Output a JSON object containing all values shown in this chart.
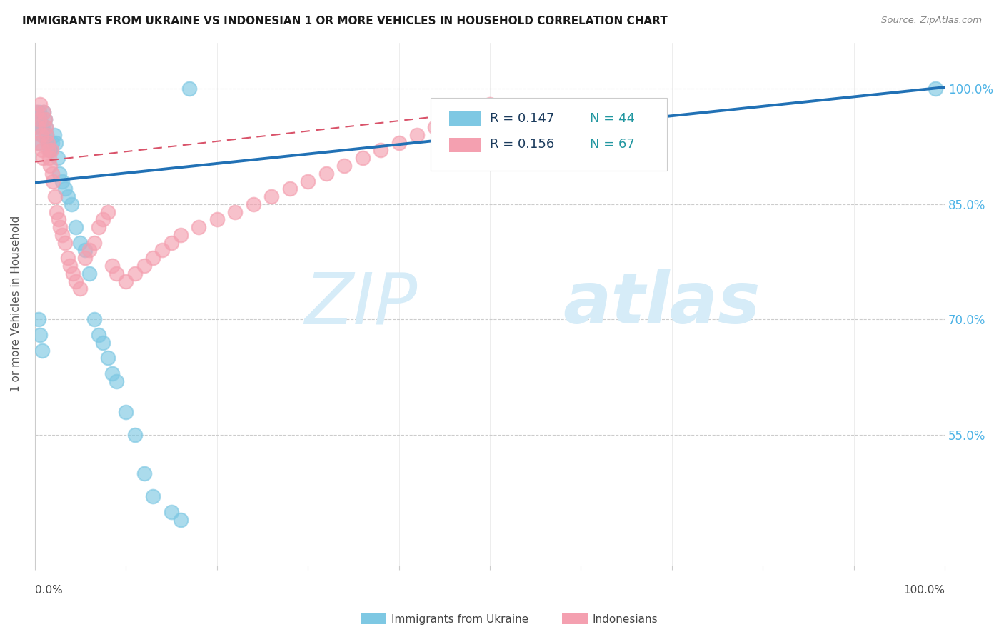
{
  "title": "IMMIGRANTS FROM UKRAINE VS INDONESIAN 1 OR MORE VEHICLES IN HOUSEHOLD CORRELATION CHART",
  "source": "Source: ZipAtlas.com",
  "ylabel": "1 or more Vehicles in Household",
  "ytick_labels": [
    "100.0%",
    "85.0%",
    "70.0%",
    "55.0%"
  ],
  "ytick_values": [
    1.0,
    0.85,
    0.7,
    0.55
  ],
  "ukraine_color": "#7ec8e3",
  "indonesian_color": "#f4a0b0",
  "ukraine_line_color": "#2171b5",
  "indonesian_line_color": "#d9536a",
  "background_color": "#ffffff",
  "watermark_zip": "ZIP",
  "watermark_atlas": "atlas",
  "watermark_color": "#d6ecf8",
  "legend_r_ukraine": "R = 0.147",
  "legend_n_ukraine": "N = 44",
  "legend_r_indonesian": "R = 0.156",
  "legend_n_indonesian": "N = 67",
  "legend_color_ukraine": "#4db3e6",
  "legend_color_indonesian": "#4db3e6",
  "ukraine_scatter_x": [
    0.002,
    0.003,
    0.004,
    0.005,
    0.006,
    0.007,
    0.008,
    0.009,
    0.01,
    0.011,
    0.012,
    0.013,
    0.015,
    0.017,
    0.019,
    0.021,
    0.023,
    0.025,
    0.027,
    0.03,
    0.033,
    0.036,
    0.04,
    0.045,
    0.05,
    0.055,
    0.06,
    0.065,
    0.07,
    0.075,
    0.08,
    0.085,
    0.09,
    0.1,
    0.11,
    0.12,
    0.13,
    0.15,
    0.16,
    0.17,
    0.004,
    0.006,
    0.008,
    0.99
  ],
  "ukraine_scatter_y": [
    0.97,
    0.95,
    0.93,
    0.97,
    0.96,
    0.95,
    0.94,
    0.95,
    0.97,
    0.96,
    0.95,
    0.94,
    0.93,
    0.92,
    0.93,
    0.94,
    0.93,
    0.91,
    0.89,
    0.88,
    0.87,
    0.86,
    0.85,
    0.82,
    0.8,
    0.79,
    0.76,
    0.7,
    0.68,
    0.67,
    0.65,
    0.63,
    0.62,
    0.58,
    0.55,
    0.5,
    0.47,
    0.45,
    0.44,
    1.0,
    0.7,
    0.68,
    0.66,
    1.0
  ],
  "indonesian_scatter_x": [
    0.002,
    0.003,
    0.004,
    0.005,
    0.006,
    0.007,
    0.008,
    0.009,
    0.01,
    0.011,
    0.012,
    0.013,
    0.014,
    0.015,
    0.016,
    0.017,
    0.018,
    0.019,
    0.02,
    0.022,
    0.024,
    0.026,
    0.028,
    0.03,
    0.033,
    0.036,
    0.039,
    0.042,
    0.045,
    0.05,
    0.055,
    0.06,
    0.065,
    0.07,
    0.075,
    0.08,
    0.085,
    0.09,
    0.1,
    0.11,
    0.12,
    0.13,
    0.14,
    0.15,
    0.16,
    0.18,
    0.2,
    0.22,
    0.24,
    0.26,
    0.28,
    0.3,
    0.32,
    0.34,
    0.36,
    0.38,
    0.4,
    0.42,
    0.44,
    0.46,
    0.48,
    0.5,
    0.52,
    0.54,
    0.56,
    0.58,
    0.6
  ],
  "indonesian_scatter_y": [
    0.97,
    0.95,
    0.93,
    0.96,
    0.98,
    0.94,
    0.92,
    0.91,
    0.97,
    0.96,
    0.95,
    0.94,
    0.93,
    0.92,
    0.91,
    0.9,
    0.92,
    0.89,
    0.88,
    0.86,
    0.84,
    0.83,
    0.82,
    0.81,
    0.8,
    0.78,
    0.77,
    0.76,
    0.75,
    0.74,
    0.78,
    0.79,
    0.8,
    0.82,
    0.83,
    0.84,
    0.77,
    0.76,
    0.75,
    0.76,
    0.77,
    0.78,
    0.79,
    0.8,
    0.81,
    0.82,
    0.83,
    0.84,
    0.85,
    0.86,
    0.87,
    0.88,
    0.89,
    0.9,
    0.91,
    0.92,
    0.93,
    0.94,
    0.95,
    0.96,
    0.97,
    0.98,
    0.96,
    0.95,
    0.94,
    0.93,
    0.92
  ],
  "ukraine_line_x": [
    0.0,
    1.0
  ],
  "ukraine_line_y": [
    0.878,
    1.002
  ],
  "indo_line_x": [
    0.0,
    0.6
  ],
  "indo_line_y": [
    0.905,
    0.985
  ],
  "xlim": [
    0.0,
    1.0
  ],
  "ylim": [
    0.38,
    1.06
  ]
}
